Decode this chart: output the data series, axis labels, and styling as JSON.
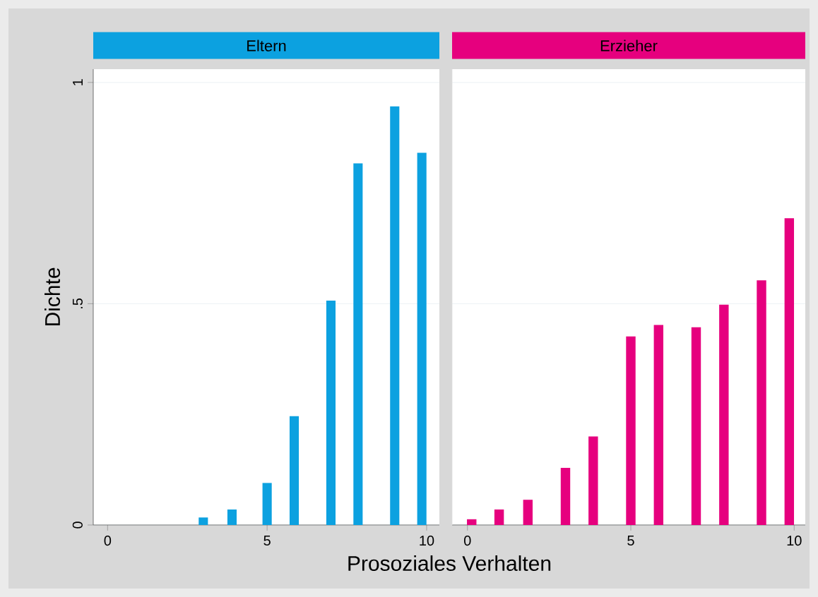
{
  "chart_data": [
    {
      "type": "bar",
      "title": "Eltern",
      "xlabel": "Prosoziales Verhalten",
      "ylabel": "Dichte",
      "x": [
        3,
        3.9,
        5,
        5.85,
        7,
        7.85,
        9,
        9.85
      ],
      "series": [
        {
          "color": "#0ca1e0",
          "values": [
            0.017,
            0.035,
            0.095,
            0.246,
            0.507,
            0.817,
            0.946,
            0.841
          ]
        }
      ],
      "xlim": [
        -0.45,
        10.4
      ],
      "xticks": [
        0,
        5,
        10
      ],
      "ylim": [
        0,
        1.03
      ],
      "yticks": [
        0,
        {
          "value": 0.5,
          "label": ".5"
        },
        1
      ],
      "grid": "y"
    },
    {
      "type": "bar",
      "title": "Erzieher",
      "x": [
        0.13,
        0.97,
        1.85,
        3,
        3.85,
        5,
        5.85,
        7,
        7.85,
        9,
        9.85
      ],
      "series": [
        {
          "color": "#e6007e",
          "values": [
            0.013,
            0.035,
            0.057,
            0.129,
            0.2,
            0.426,
            0.452,
            0.447,
            0.498,
            0.553,
            0.693
          ]
        }
      ],
      "xlim": [
        -0.47,
        10.34
      ],
      "xticks": [
        0,
        5,
        10
      ],
      "ylim": [
        0,
        1.03
      ],
      "yticks": [
        {
          "value": 0,
          "label": null
        },
        {
          "value": 0.5,
          "label": null
        },
        {
          "value": 1,
          "label": null
        }
      ],
      "grid": "y",
      "tick_labels": "x"
    }
  ]
}
